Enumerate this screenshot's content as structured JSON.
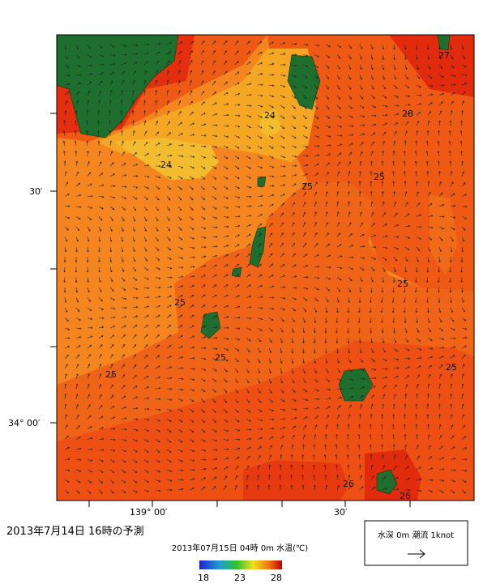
{
  "title": "2013年7月14日  16時の予測",
  "subtitle": "2013年07月15日 04時 0m 水温(℃)",
  "colorbar": {
    "labels": [
      "18",
      "23",
      "28"
    ]
  },
  "legend": {
    "text": "水深 0m 潮流 1knot"
  },
  "axes": {
    "lat_labels": [
      "30′",
      "34° 00′"
    ],
    "lon_labels": [
      "139° 00′",
      "30′"
    ]
  },
  "contour_labels": [
    "24",
    "24",
    "25",
    "25",
    "25",
    "25",
    "25",
    "25",
    "25",
    "26",
    "27",
    "28",
    "26"
  ]
}
